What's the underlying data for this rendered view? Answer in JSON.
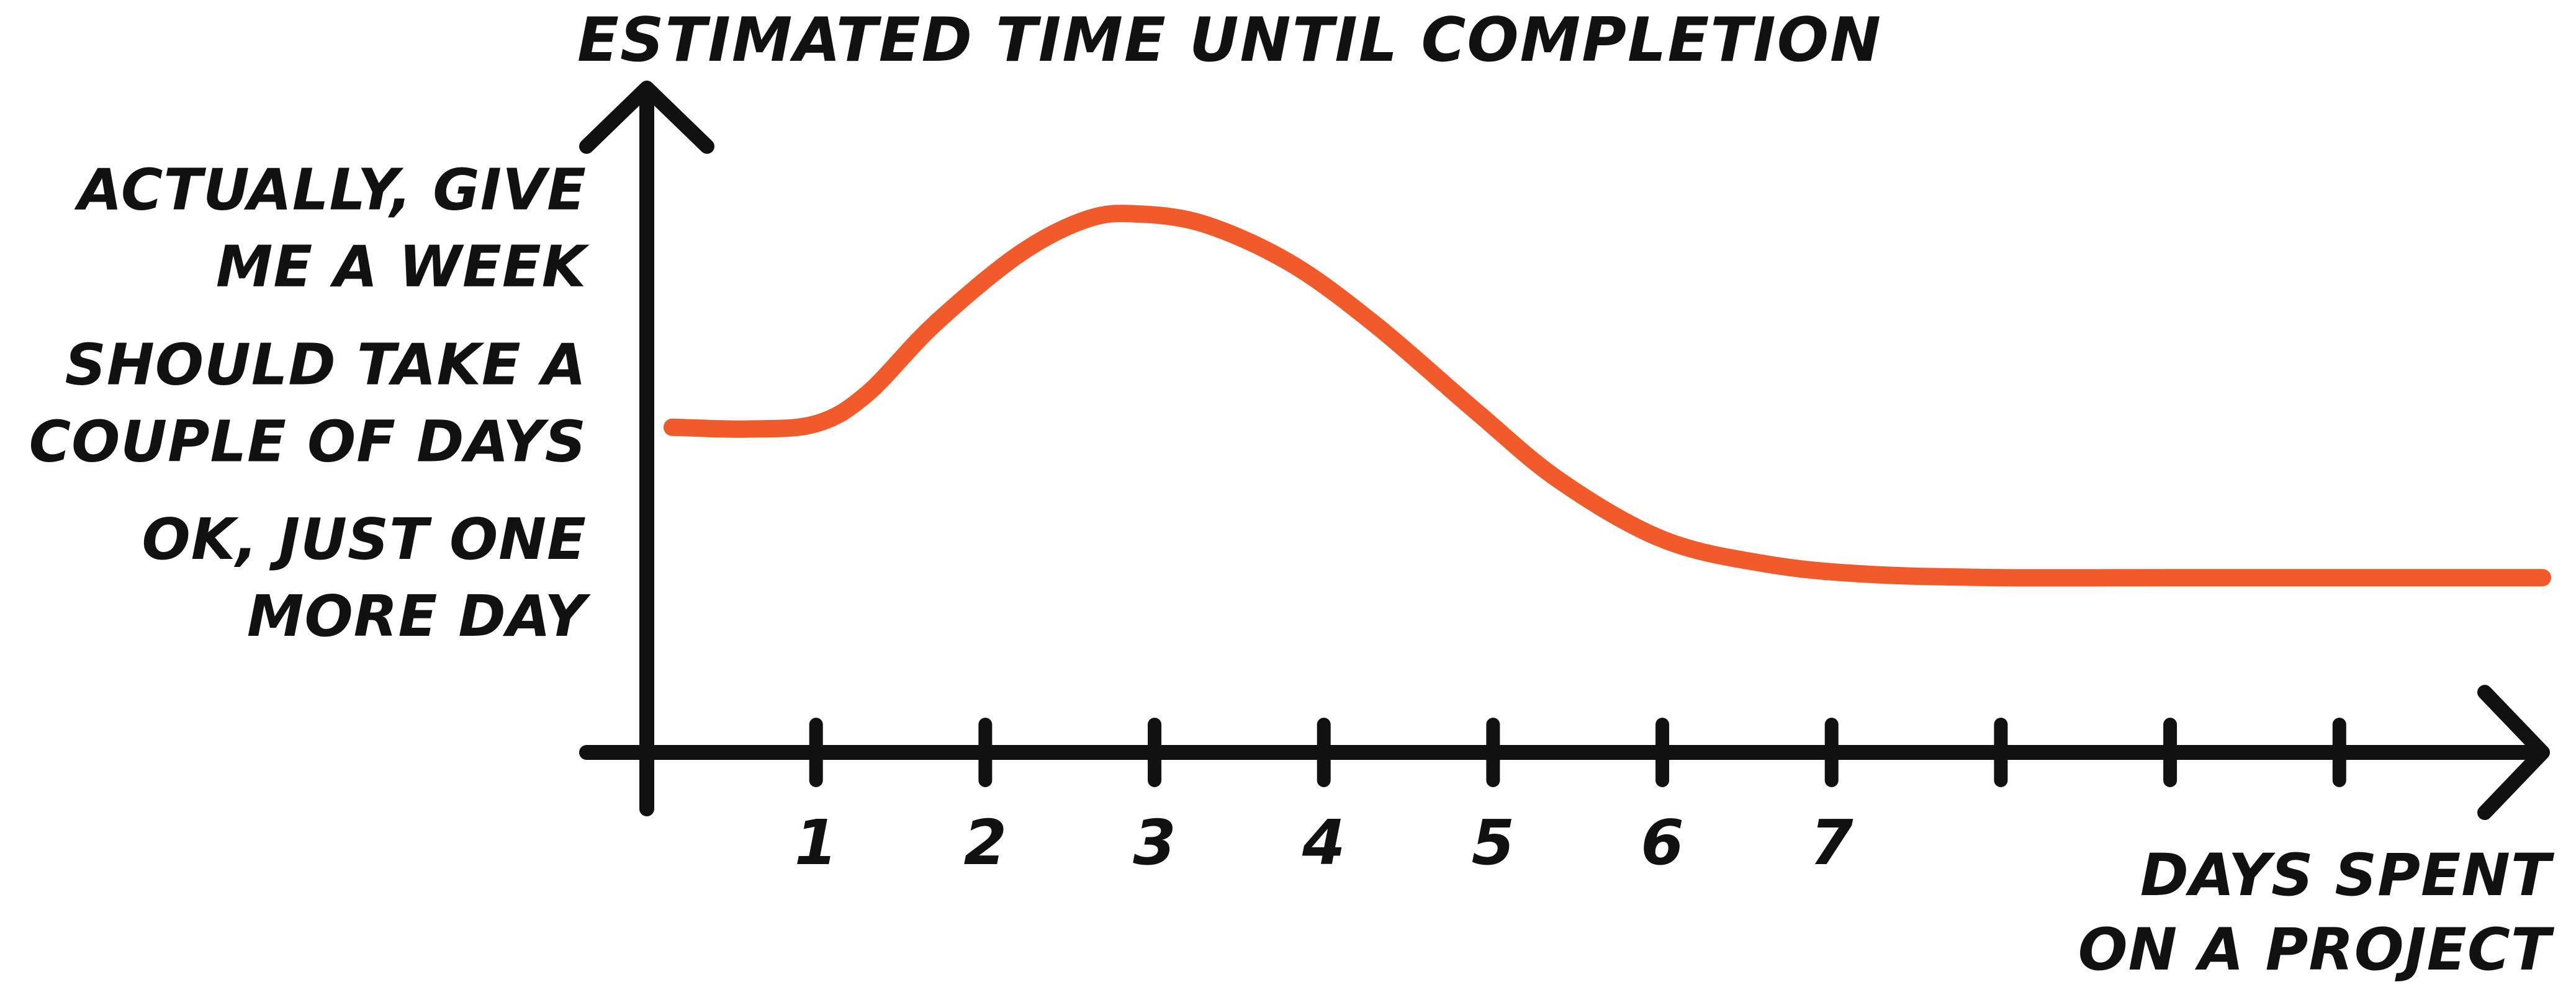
{
  "chart_data": {
    "type": "line",
    "title": "ESTIMATED TIME UNTIL COMPLETION",
    "xlabel": [
      "DAYS SPENT",
      "ON A PROJECT"
    ],
    "x_tick_labels": [
      "1",
      "2",
      "3",
      "4",
      "5",
      "6",
      "7",
      "",
      "",
      ""
    ],
    "y_categories": [
      {
        "value": 3,
        "lines": [
          "ACTUALLY, GIVE",
          "ME A WEEK"
        ]
      },
      {
        "value": 2,
        "lines": [
          "SHOULD TAKE A",
          "COUPLE OF DAYS"
        ]
      },
      {
        "value": 1,
        "lines": [
          "OK, JUST ONE",
          "MORE DAY"
        ]
      }
    ],
    "xlim": [
      0,
      11.2
    ],
    "ylim": [
      0,
      3.8
    ],
    "grid": false,
    "series": [
      {
        "color": "#f15a2b",
        "x": [
          0.15,
          0.6,
          1.0,
          1.3,
          1.7,
          2.2,
          2.6,
          2.9,
          3.3,
          3.8,
          4.3,
          4.9,
          5.4,
          6.0,
          6.6,
          7.2,
          8.0,
          9.0,
          10.0,
          11.2
        ],
        "y": [
          1.86,
          1.85,
          1.88,
          2.05,
          2.45,
          2.85,
          3.05,
          3.08,
          3.02,
          2.8,
          2.45,
          1.95,
          1.55,
          1.22,
          1.08,
          1.02,
          1.0,
          1.0,
          1.0,
          1.0
        ]
      }
    ]
  }
}
